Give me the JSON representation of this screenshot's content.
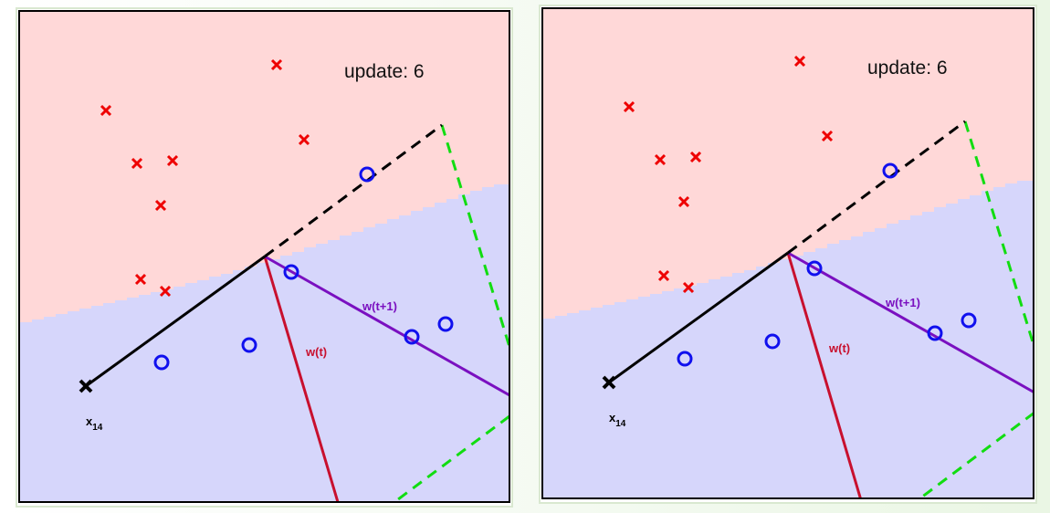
{
  "panels": [
    {
      "id": "left",
      "update_label": "update: 6",
      "w_t_label": "w(t)",
      "w_t1_label": "w(t+1)",
      "x_label": "x",
      "x_subscript": "14"
    },
    {
      "id": "right",
      "update_label": "update: 6",
      "w_t_label": "w(t)",
      "w_t1_label": "w(t+1)",
      "x_label": "x",
      "x_subscript": "14"
    }
  ],
  "points": {
    "crosses": [
      [
        116,
        121
      ],
      [
        303,
        71
      ],
      [
        333,
        153
      ],
      [
        150,
        179
      ],
      [
        189,
        176
      ],
      [
        176,
        225
      ],
      [
        154,
        306
      ],
      [
        181,
        319
      ]
    ],
    "circles": [
      [
        402,
        191
      ],
      [
        319,
        298
      ],
      [
        177,
        397
      ],
      [
        273,
        378
      ],
      [
        451,
        369
      ],
      [
        488,
        355
      ]
    ],
    "highlight": [
      94,
      423
    ]
  },
  "colors": {
    "pink_region": "#ffd8d8",
    "blue_region": "#d6d6fb",
    "cross": "#ee0000",
    "circle": "#1010ee",
    "w_t": "#c8102e",
    "w_t1": "#7a10c0",
    "boundary": "#000000",
    "green_dash": "#11dd11",
    "frame": "#000000"
  }
}
